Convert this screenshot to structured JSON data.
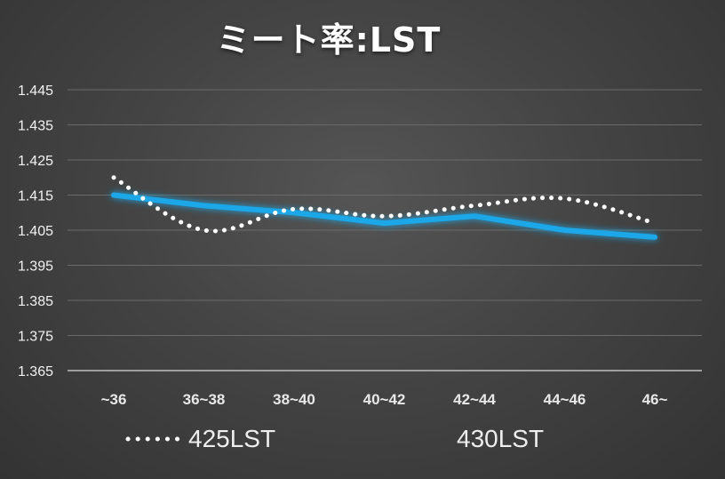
{
  "chart_data": {
    "type": "line",
    "title": "ミート率:LST",
    "categories": [
      "~36",
      "36~38",
      "38~40",
      "40~42",
      "42~44",
      "44~46",
      "46~"
    ],
    "ylim": [
      1.365,
      1.445
    ],
    "y_ticks": [
      "1.445",
      "1.435",
      "1.425",
      "1.415",
      "1.405",
      "1.395",
      "1.385",
      "1.375",
      "1.365"
    ],
    "grid": true,
    "legend_position": "bottom",
    "series": [
      {
        "name": "425LST",
        "style": "dotted",
        "color": "#ffffff",
        "values": [
          1.42,
          1.405,
          1.411,
          1.409,
          1.412,
          1.414,
          1.407
        ]
      },
      {
        "name": "430LST",
        "style": "solid",
        "color": "#1aa7e8",
        "values": [
          1.415,
          1.412,
          1.41,
          1.407,
          1.409,
          1.405,
          1.403
        ]
      }
    ]
  }
}
